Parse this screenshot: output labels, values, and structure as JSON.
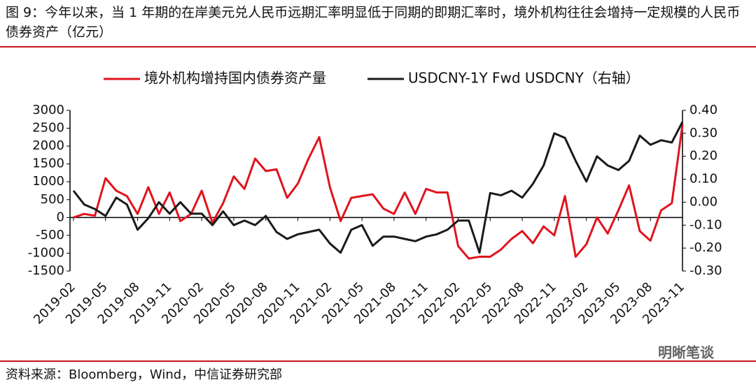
{
  "chart_data": {
    "type": "line",
    "title": "图 9：今年以来，当 1 年期的在岸美元兑人民币远期汇率明显低于同期的即期汇率时，境外机构往往会增持一定规模的人民币债券资产（亿元）",
    "source": "资料来源：Bloomberg，Wind，中信证券研究部",
    "watermark": "明晰笔谈",
    "categories": [
      "2019-02",
      null,
      null,
      "2019-05",
      null,
      null,
      "2019-08",
      null,
      null,
      "2019-11",
      null,
      null,
      "2020-02",
      null,
      null,
      "2020-05",
      null,
      null,
      "2020-08",
      null,
      null,
      "2020-11",
      null,
      null,
      "2021-02",
      null,
      null,
      "2021-05",
      null,
      null,
      "2021-08",
      null,
      null,
      "2021-11",
      null,
      null,
      "2022-02",
      null,
      null,
      "2022-05",
      null,
      null,
      "2022-08",
      null,
      null,
      "2022-11",
      null,
      null,
      "2023-02",
      null,
      null,
      "2023-05",
      null,
      null,
      "2023-08",
      null,
      null,
      "2023-11"
    ],
    "series": [
      {
        "name": "境外机构增持国内债券资产量",
        "color": "#e0141e",
        "axis": "y",
        "values": [
          0,
          100,
          50,
          1100,
          750,
          600,
          100,
          850,
          100,
          700,
          -100,
          100,
          750,
          -150,
          400,
          1150,
          800,
          1650,
          1300,
          1350,
          550,
          950,
          1650,
          2250,
          850,
          -100,
          550,
          600,
          650,
          250,
          100,
          700,
          100,
          800,
          700,
          700,
          -800,
          -1150,
          -1100,
          -1100,
          -900,
          -600,
          -380,
          -720,
          -250,
          -500,
          600,
          -1100,
          -750,
          0,
          -450,
          200,
          900,
          -380,
          -650,
          200,
          400,
          2600
        ]
      },
      {
        "name": "USDCNY-1Y Fwd USDCNY（右轴）",
        "color": "#1a1a1a",
        "axis": "y2",
        "values": [
          0.05,
          -0.01,
          -0.03,
          -0.06,
          0.02,
          -0.01,
          -0.12,
          -0.07,
          0.0,
          -0.05,
          0.0,
          -0.05,
          -0.05,
          -0.1,
          -0.04,
          -0.1,
          -0.08,
          -0.1,
          -0.06,
          -0.13,
          -0.16,
          -0.14,
          -0.13,
          -0.12,
          -0.18,
          -0.22,
          -0.12,
          -0.1,
          -0.19,
          -0.15,
          -0.15,
          -0.16,
          -0.17,
          -0.15,
          -0.14,
          -0.12,
          -0.08,
          -0.08,
          -0.22,
          0.04,
          0.03,
          0.05,
          0.02,
          0.08,
          0.16,
          0.3,
          0.28,
          0.18,
          0.09,
          0.2,
          0.16,
          0.14,
          0.18,
          0.29,
          0.25,
          0.27,
          0.26,
          0.35
        ]
      }
    ],
    "ylim": [
      -1500,
      3000
    ],
    "yticks": [
      3000,
      2500,
      2000,
      1500,
      1000,
      500,
      0,
      -500,
      -1000,
      -1500
    ],
    "y2lim": [
      -0.3,
      0.4
    ],
    "y2ticks": [
      {
        "value": 0.4,
        "label": "0.40"
      },
      {
        "value": 0.3,
        "label": "0.30"
      },
      {
        "value": 0.2,
        "label": "0.20"
      },
      {
        "value": 0.1,
        "label": "0.10"
      },
      {
        "value": 0,
        "label": "0.00"
      },
      {
        "value": -0.1,
        "label": "-0.10"
      },
      {
        "value": -0.2,
        "label": "-0.20"
      },
      {
        "value": -0.3,
        "label": "-0.30"
      }
    ]
  }
}
